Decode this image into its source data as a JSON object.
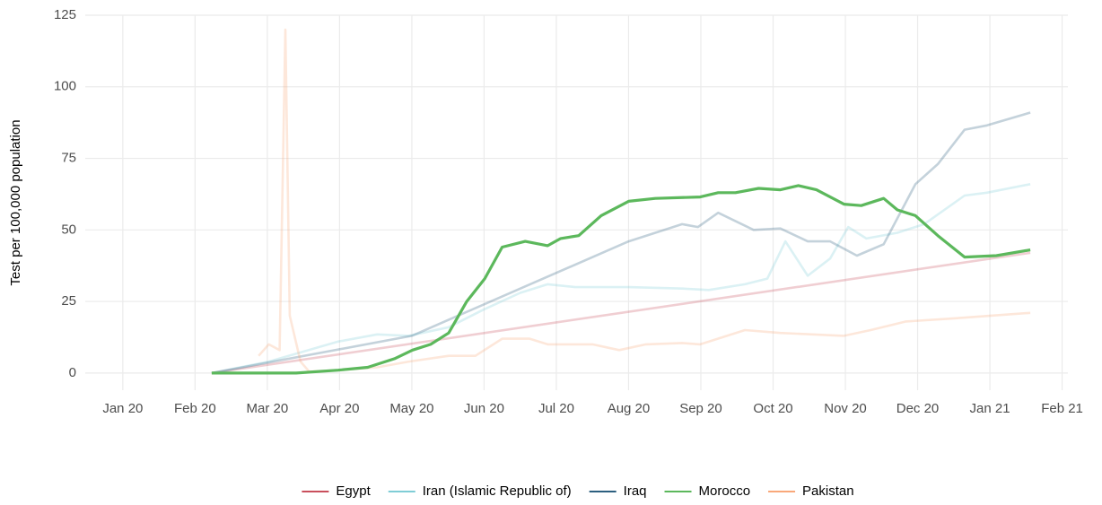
{
  "chart_data": {
    "type": "line",
    "ylabel": "Test per 100,000 population",
    "xlim": [
      -0.52,
      13.08
    ],
    "xticks": [
      {
        "value": 0,
        "label": "Jan 20"
      },
      {
        "value": 1,
        "label": "Feb 20"
      },
      {
        "value": 2,
        "label": "Mar 20"
      },
      {
        "value": 3,
        "label": "Apr 20"
      },
      {
        "value": 4,
        "label": "May 20"
      },
      {
        "value": 5,
        "label": "Jun 20"
      },
      {
        "value": 6,
        "label": "Jul 20"
      },
      {
        "value": 7,
        "label": "Aug 20"
      },
      {
        "value": 8,
        "label": "Sep 20"
      },
      {
        "value": 9,
        "label": "Oct 20"
      },
      {
        "value": 10,
        "label": "Nov 20"
      },
      {
        "value": 11,
        "label": "Dec 20"
      },
      {
        "value": 12,
        "label": "Jan 21"
      },
      {
        "value": 13,
        "label": "Feb 21"
      }
    ],
    "ylim": [
      -6,
      125
    ],
    "yticks": [
      0,
      25,
      50,
      75,
      100,
      125
    ],
    "grid": true,
    "legend": "bottom",
    "highlight": "Morocco",
    "series": [
      {
        "name": "Egypt",
        "color": "#c94f5c",
        "x": [
          1.23,
          12.56
        ],
        "values": [
          0,
          42
        ]
      },
      {
        "name": "Iran (Islamic Republic of)",
        "color": "#7fcdd6",
        "x": [
          1.23,
          2.02,
          2.98,
          3.52,
          3.96,
          4.51,
          4.98,
          5.5,
          5.88,
          6.26,
          7.0,
          7.74,
          8.11,
          8.61,
          8.92,
          9.17,
          9.48,
          9.79,
          10.04,
          10.29,
          10.72,
          11.09,
          11.65,
          11.96,
          12.56
        ],
        "values": [
          0,
          4,
          11,
          13.5,
          13,
          16,
          22,
          28,
          31,
          30,
          30,
          29.5,
          29,
          31,
          33,
          46,
          34,
          40,
          51,
          47,
          49,
          52,
          62,
          63,
          66
        ]
      },
      {
        "name": "Iraq",
        "color": "#2c5f7f",
        "x": [
          1.23,
          4,
          7,
          7.74,
          7.96,
          8.24,
          8.73,
          9.1,
          9.48,
          9.79,
          10.16,
          10.53,
          10.97,
          11.28,
          11.65,
          11.96,
          12.56
        ],
        "values": [
          0,
          13,
          46,
          52,
          51,
          56,
          50,
          50.5,
          46,
          46,
          41,
          45,
          66,
          73,
          85,
          86.5,
          91
        ]
      },
      {
        "name": "Morocco",
        "color": "#5cb85c",
        "x": [
          1.23,
          2.4,
          2.98,
          3.39,
          3.76,
          4.01,
          4.26,
          4.51,
          4.76,
          5.01,
          5.25,
          5.57,
          5.88,
          6.06,
          6.31,
          6.62,
          7.0,
          7.37,
          7.99,
          8.24,
          8.48,
          8.8,
          9.1,
          9.35,
          9.6,
          9.98,
          10.22,
          10.53,
          10.72,
          10.97,
          11.28,
          11.65,
          12.09,
          12.56
        ],
        "values": [
          0,
          0,
          1,
          2,
          5,
          8,
          10,
          14,
          25,
          33,
          44,
          46,
          44.5,
          47,
          48,
          55,
          60,
          61,
          61.5,
          63,
          63,
          64.5,
          64,
          65.5,
          64,
          59,
          58.5,
          61,
          57,
          55,
          48,
          40.5,
          41,
          43
        ]
      },
      {
        "name": "Pakistan",
        "color": "#f9a87a",
        "x": [
          1.88,
          2.02,
          2.17,
          2.25,
          2.31,
          2.46,
          2.58,
          2.98,
          3.52,
          3.96,
          4.51,
          4.88,
          5.25,
          5.63,
          5.88,
          6.5,
          6.87,
          7.24,
          7.74,
          7.99,
          8.61,
          9.1,
          9.98,
          10.35,
          10.84,
          11.46,
          12.56
        ],
        "values": [
          6,
          10,
          8,
          120,
          20,
          4,
          0.5,
          1,
          2,
          4,
          6,
          6,
          12,
          12,
          10,
          10,
          8,
          10,
          10.5,
          10,
          15,
          14,
          13,
          15,
          18,
          19,
          21
        ]
      }
    ]
  }
}
